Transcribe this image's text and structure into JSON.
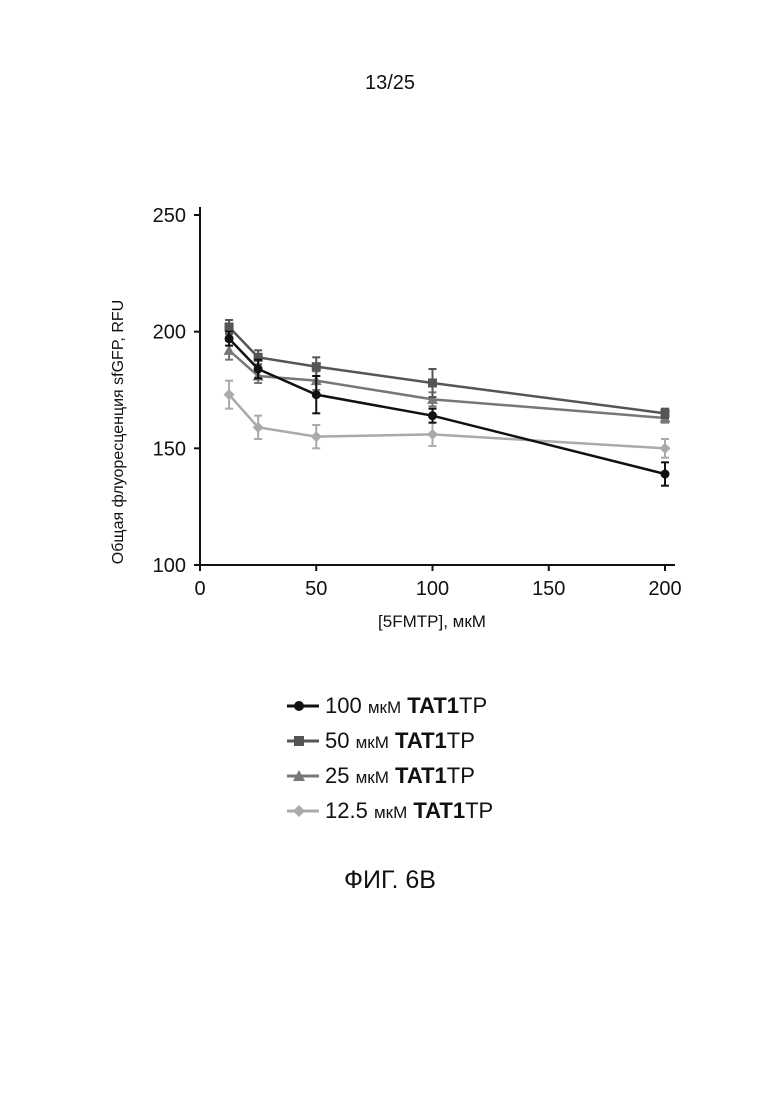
{
  "page": {
    "page_number": "13/25",
    "figure_caption": "ФИГ. 6В"
  },
  "chart_data": {
    "type": "line",
    "xlabel": "[5FMTP], мкМ",
    "ylabel": "Общая флуоресценция sfGFP, RFU",
    "xlim": [
      0,
      200
    ],
    "ylim": [
      100,
      250
    ],
    "x_ticks": [
      0,
      50,
      100,
      150,
      200
    ],
    "y_ticks": [
      100,
      150,
      200,
      250
    ],
    "x": [
      12.5,
      25,
      50,
      100,
      200
    ],
    "grid": false,
    "legend_position": "bottom",
    "error_bars": true,
    "series": [
      {
        "name": "100 мкМ TAT1TP",
        "legend": {
          "value": "100",
          "unit": "мкМ",
          "bold": "TAT1",
          "suffix": "TP"
        },
        "color": "#111111",
        "marker": "circle",
        "values": [
          197,
          184,
          173,
          164,
          139
        ],
        "errors": [
          3,
          4,
          8,
          3,
          5
        ]
      },
      {
        "name": "50 мкМ TAT1TP",
        "legend": {
          "value": "50",
          "unit": "мкМ",
          "bold": "TAT1",
          "suffix": "TP"
        },
        "color": "#555555",
        "marker": "square",
        "values": [
          202,
          189,
          185,
          178,
          165
        ],
        "errors": [
          3,
          3,
          4,
          6,
          2
        ]
      },
      {
        "name": "25 мкМ TAT1TP",
        "legend": {
          "value": "25",
          "unit": "мкМ",
          "bold": "TAT1",
          "suffix": "TP"
        },
        "color": "#777777",
        "marker": "triangle",
        "values": [
          192,
          181,
          179,
          171,
          163
        ],
        "errors": [
          4,
          3,
          4,
          3,
          2
        ]
      },
      {
        "name": "12.5 мкМ TAT1TP",
        "legend": {
          "value": "12.5",
          "unit": "мкМ",
          "bold": "TAT1",
          "suffix": "TP"
        },
        "color": "#aaaaaa",
        "marker": "diamond",
        "values": [
          173,
          159,
          155,
          156,
          150
        ],
        "errors": [
          6,
          5,
          5,
          5,
          4
        ]
      }
    ]
  }
}
